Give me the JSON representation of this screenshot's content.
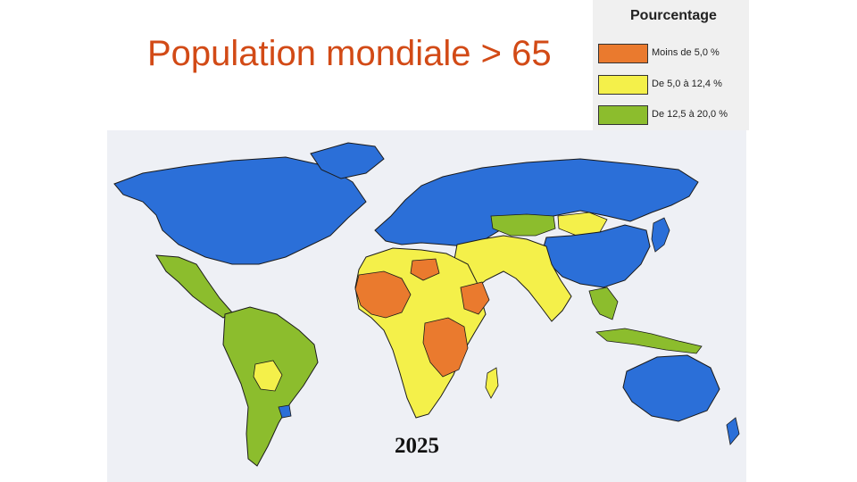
{
  "title": "Population mondiale > 65",
  "map": {
    "year": "2025",
    "ocean_color": "#eef0f5",
    "border_color": "#1a1a1a"
  },
  "legend": {
    "title": "Pourcentage",
    "items": [
      {
        "label": "Moins de 5,0 %",
        "color": "#ea7a2e"
      },
      {
        "label": "De 5,0 à 12,4 %",
        "color": "#f4f04a"
      },
      {
        "label": "De 12,5 à 20,0 %",
        "color": "#8cbd2d"
      }
    ],
    "unlisted_color": "#2b6fd8"
  }
}
